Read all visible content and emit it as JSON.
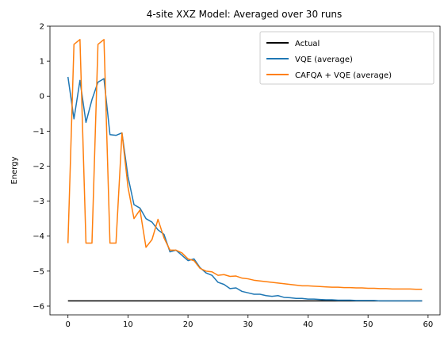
{
  "chart_data": {
    "type": "line",
    "title": "4-site XXZ Model: Averaged over 30 runs",
    "xlabel": "",
    "ylabel": "Energy",
    "xlim": [
      -3,
      62
    ],
    "ylim": [
      -6.25,
      2
    ],
    "xticks": [
      0,
      10,
      20,
      30,
      40,
      50,
      60
    ],
    "yticks": [
      -6,
      -5,
      -4,
      -3,
      -2,
      -1,
      0,
      1,
      2
    ],
    "grid": false,
    "legend_position": "top-right",
    "series": [
      {
        "name": "Actual",
        "color": "#000000",
        "x": [
          0,
          59
        ],
        "y": [
          -5.85,
          -5.85
        ]
      },
      {
        "name": "VQE (average)",
        "color": "#1f77b4",
        "x": [
          0,
          1,
          2,
          3,
          4,
          5,
          6,
          7,
          8,
          9,
          10,
          11,
          12,
          13,
          14,
          15,
          16,
          17,
          18,
          19,
          20,
          21,
          22,
          23,
          24,
          25,
          26,
          27,
          28,
          29,
          30,
          31,
          32,
          33,
          34,
          35,
          36,
          37,
          38,
          39,
          40,
          41,
          42,
          43,
          44,
          45,
          46,
          47,
          48,
          49,
          50,
          51,
          52,
          53,
          54,
          55,
          56,
          57,
          58,
          59
        ],
        "y": [
          0.55,
          -0.65,
          0.45,
          -0.75,
          -0.1,
          0.4,
          0.5,
          -1.1,
          -1.12,
          -1.05,
          -2.3,
          -3.1,
          -3.2,
          -3.5,
          -3.6,
          -3.82,
          -3.95,
          -4.45,
          -4.4,
          -4.55,
          -4.7,
          -4.65,
          -4.9,
          -5.05,
          -5.12,
          -5.32,
          -5.38,
          -5.5,
          -5.48,
          -5.58,
          -5.62,
          -5.66,
          -5.66,
          -5.7,
          -5.72,
          -5.7,
          -5.75,
          -5.76,
          -5.78,
          -5.78,
          -5.8,
          -5.8,
          -5.81,
          -5.82,
          -5.82,
          -5.83,
          -5.83,
          -5.83,
          -5.84,
          -5.84,
          -5.84,
          -5.84,
          -5.85,
          -5.85,
          -5.85,
          -5.85,
          -5.85,
          -5.85,
          -5.85,
          -5.85
        ]
      },
      {
        "name": "CAFQA + VQE (average)",
        "color": "#ff7f0e",
        "x": [
          0,
          1,
          2,
          3,
          4,
          5,
          6,
          7,
          8,
          9,
          10,
          11,
          12,
          13,
          14,
          15,
          16,
          17,
          18,
          19,
          20,
          21,
          22,
          23,
          24,
          25,
          26,
          27,
          28,
          29,
          30,
          31,
          32,
          33,
          34,
          35,
          36,
          37,
          38,
          39,
          40,
          41,
          42,
          43,
          44,
          45,
          46,
          47,
          48,
          49,
          50,
          51,
          52,
          53,
          54,
          55,
          56,
          57,
          58,
          59
        ],
        "y": [
          -4.2,
          1.48,
          1.62,
          -4.2,
          -4.2,
          1.48,
          1.62,
          -4.2,
          -4.2,
          -1.05,
          -2.6,
          -3.5,
          -3.25,
          -4.32,
          -4.1,
          -3.52,
          -4.05,
          -4.4,
          -4.4,
          -4.48,
          -4.65,
          -4.7,
          -4.92,
          -5.0,
          -5.02,
          -5.12,
          -5.1,
          -5.15,
          -5.14,
          -5.2,
          -5.22,
          -5.26,
          -5.28,
          -5.3,
          -5.32,
          -5.34,
          -5.36,
          -5.38,
          -5.4,
          -5.42,
          -5.42,
          -5.43,
          -5.44,
          -5.45,
          -5.46,
          -5.46,
          -5.47,
          -5.47,
          -5.48,
          -5.48,
          -5.49,
          -5.49,
          -5.5,
          -5.5,
          -5.51,
          -5.51,
          -5.51,
          -5.51,
          -5.52,
          -5.52
        ]
      }
    ]
  }
}
